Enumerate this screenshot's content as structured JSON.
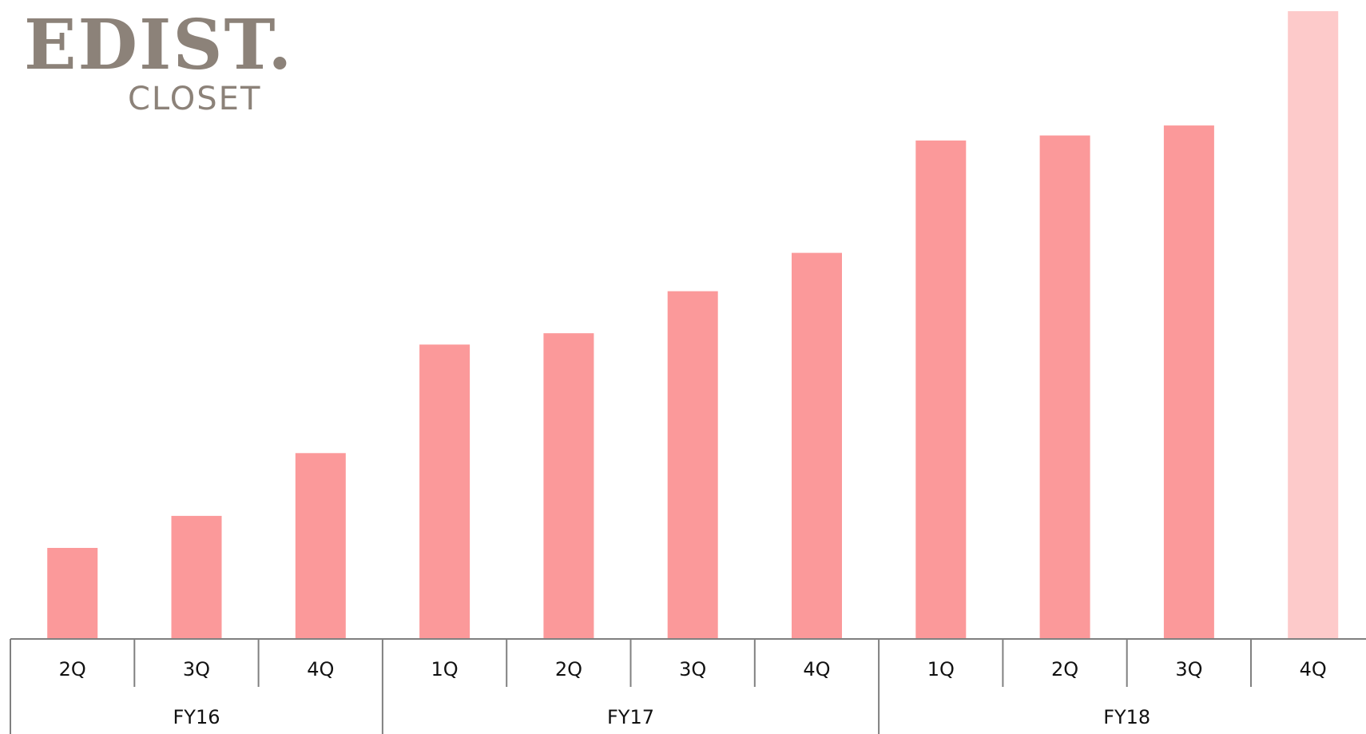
{
  "logo": {
    "main": "EDIST.",
    "sub": "CLOSET"
  },
  "chart_data": {
    "type": "bar",
    "title": "",
    "xlabel": "",
    "ylabel": "",
    "ylim": [
      0,
      100
    ],
    "grid": false,
    "groups": [
      {
        "label": "FY16",
        "categories": [
          "2Q",
          "3Q",
          "4Q"
        ]
      },
      {
        "label": "FY17",
        "categories": [
          "1Q",
          "2Q",
          "3Q",
          "4Q"
        ]
      },
      {
        "label": "FY18",
        "categories": [
          "1Q",
          "2Q",
          "3Q",
          "4Q"
        ]
      }
    ],
    "categories": [
      "2Q",
      "3Q",
      "4Q",
      "1Q",
      "2Q",
      "3Q",
      "4Q",
      "1Q",
      "2Q",
      "3Q",
      "4Q"
    ],
    "values": [
      14.5,
      19.6,
      29.6,
      46.9,
      48.7,
      55.4,
      61.5,
      79.4,
      80.2,
      81.8,
      100
    ],
    "bar_colors": [
      "#fb999a",
      "#fb999a",
      "#fb999a",
      "#fb999a",
      "#fb999a",
      "#fb999a",
      "#fb999a",
      "#fb999a",
      "#fb999a",
      "#fb999a",
      "#fdcaca"
    ],
    "axis_color": "#808080"
  }
}
